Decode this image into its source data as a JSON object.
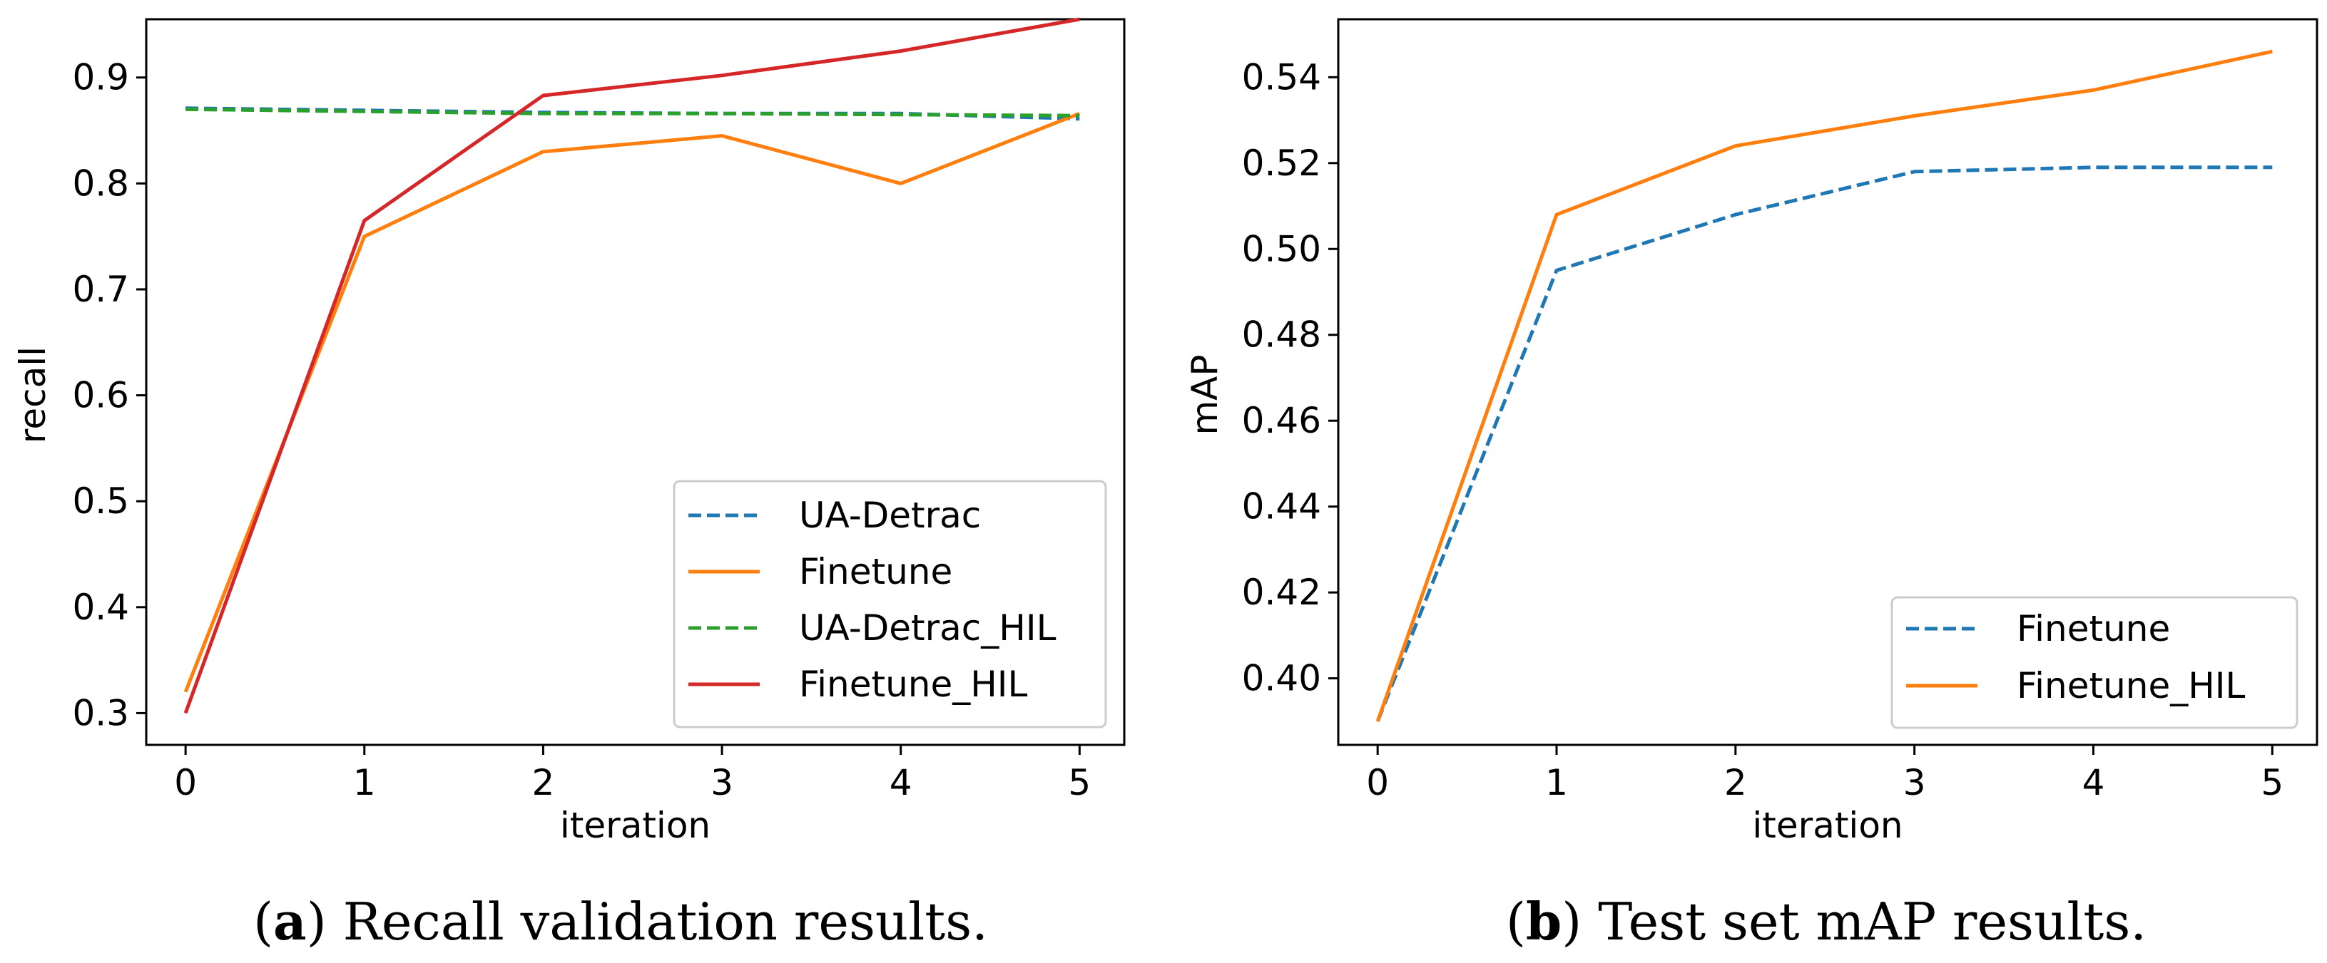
{
  "colors": {
    "blue": "#1f77b4",
    "orange": "#ff7f0e",
    "green": "#2ca02c",
    "red": "#d62728",
    "frame": "#000000",
    "legend_border": "#cccccc"
  },
  "chart_data": [
    {
      "type": "line",
      "title": "",
      "xlabel": "iteration",
      "ylabel": "recall",
      "x": [
        0,
        1,
        2,
        3,
        4,
        5
      ],
      "xticks": [
        "0",
        "1",
        "2",
        "3",
        "4",
        "5"
      ],
      "yticks": [
        "0.3",
        "0.4",
        "0.5",
        "0.6",
        "0.7",
        "0.8",
        "0.9"
      ],
      "xlim": [
        -0.22,
        5.25
      ],
      "ylim": [
        0.27,
        0.955
      ],
      "legend_position": "lower-right",
      "series": [
        {
          "name": "UA-Detrac",
          "style": "dashed",
          "color": "#1f77b4",
          "values": [
            0.871,
            0.869,
            0.867,
            0.866,
            0.866,
            0.861
          ]
        },
        {
          "name": "Finetune",
          "style": "solid",
          "color": "#ff7f0e",
          "values": [
            0.32,
            0.75,
            0.83,
            0.845,
            0.8,
            0.866
          ]
        },
        {
          "name": "UA-Detrac_HIL",
          "style": "dashed",
          "color": "#2ca02c",
          "values": [
            0.87,
            0.868,
            0.866,
            0.866,
            0.865,
            0.864
          ]
        },
        {
          "name": "Finetune_HIL",
          "style": "solid",
          "color": "#d62728",
          "values": [
            0.3,
            0.765,
            0.883,
            0.902,
            0.925,
            0.955
          ]
        }
      ],
      "caption_letter": "a",
      "caption_text": " Recall validation results."
    },
    {
      "type": "line",
      "title": "",
      "xlabel": "iteration",
      "ylabel": "mAP",
      "x": [
        0,
        1,
        2,
        3,
        4,
        5
      ],
      "xticks": [
        "0",
        "1",
        "2",
        "3",
        "4",
        "5"
      ],
      "yticks": [
        "0.40",
        "0.42",
        "0.44",
        "0.46",
        "0.48",
        "0.50",
        "0.52",
        "0.54"
      ],
      "xlim": [
        -0.22,
        5.25
      ],
      "ylim": [
        0.3845,
        0.5535
      ],
      "legend_position": "lower-right",
      "series": [
        {
          "name": "Finetune",
          "style": "dashed",
          "color": "#1f77b4",
          "values": [
            0.39,
            0.495,
            0.508,
            0.518,
            0.519,
            0.519
          ]
        },
        {
          "name": "Finetune_HIL",
          "style": "solid",
          "color": "#ff7f0e",
          "values": [
            0.39,
            0.508,
            0.524,
            0.531,
            0.537,
            0.546
          ]
        }
      ],
      "caption_letter": "b",
      "caption_text": " Test set mAP results."
    }
  ]
}
